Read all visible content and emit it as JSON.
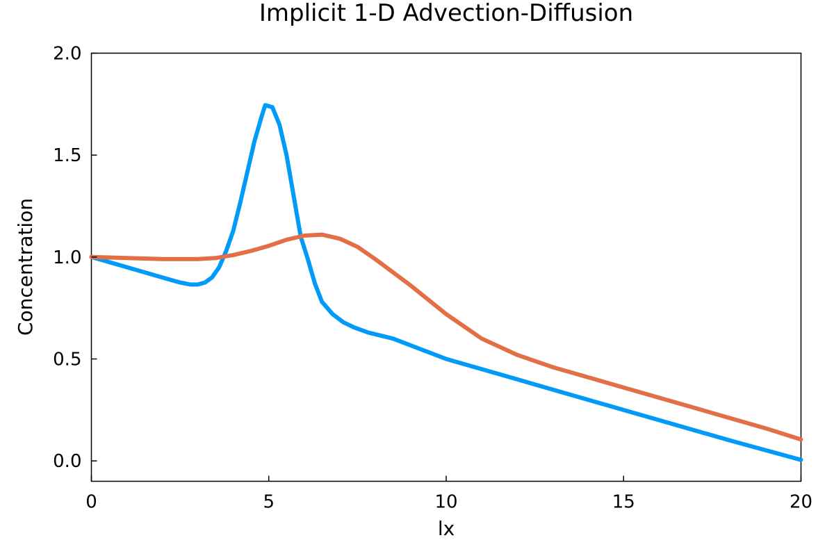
{
  "chart_data": {
    "type": "line",
    "title": "Implicit 1-D Advection-Diffusion",
    "xlabel": "lx",
    "ylabel": "Concentration",
    "xlim": [
      0,
      20
    ],
    "ylim": [
      -0.1,
      2.0
    ],
    "xticks": [
      0,
      5,
      10,
      15,
      20
    ],
    "xtick_labels": [
      "0",
      "5",
      "10",
      "15",
      "20"
    ],
    "yticks": [
      0.0,
      0.5,
      1.0,
      1.5,
      2.0
    ],
    "ytick_labels": [
      "0.0",
      "0.5",
      "1.0",
      "1.5",
      "2.0"
    ],
    "grid": false,
    "legend": "none",
    "series": [
      {
        "color": "#009af9",
        "x": [
          0,
          1,
          2,
          2.5,
          2.8,
          3.0,
          3.2,
          3.4,
          3.6,
          3.8,
          4.0,
          4.2,
          4.4,
          4.6,
          4.8,
          4.9,
          5.1,
          5.3,
          5.5,
          5.7,
          5.9,
          6.1,
          6.3,
          6.5,
          6.8,
          7.1,
          7.4,
          7.8,
          8.5,
          10,
          12,
          14,
          16,
          18,
          20
        ],
        "y": [
          1.0,
          0.95,
          0.9,
          0.875,
          0.865,
          0.865,
          0.875,
          0.9,
          0.95,
          1.03,
          1.13,
          1.27,
          1.42,
          1.57,
          1.69,
          1.745,
          1.735,
          1.65,
          1.5,
          1.3,
          1.1,
          0.99,
          0.87,
          0.78,
          0.72,
          0.68,
          0.655,
          0.63,
          0.6,
          0.5,
          0.4,
          0.3,
          0.2,
          0.1,
          0.005
        ]
      },
      {
        "color": "#e26f46",
        "x": [
          0,
          1,
          2,
          3,
          3.5,
          4,
          4.5,
          5,
          5.5,
          6,
          6.5,
          7,
          7.5,
          8,
          9,
          10,
          11,
          12,
          13,
          14,
          15,
          16,
          17,
          18,
          19,
          20
        ],
        "y": [
          1.0,
          0.995,
          0.99,
          0.99,
          0.995,
          1.01,
          1.03,
          1.055,
          1.085,
          1.105,
          1.11,
          1.09,
          1.05,
          0.99,
          0.86,
          0.72,
          0.6,
          0.52,
          0.46,
          0.41,
          0.36,
          0.31,
          0.26,
          0.21,
          0.16,
          0.105
        ]
      }
    ]
  }
}
